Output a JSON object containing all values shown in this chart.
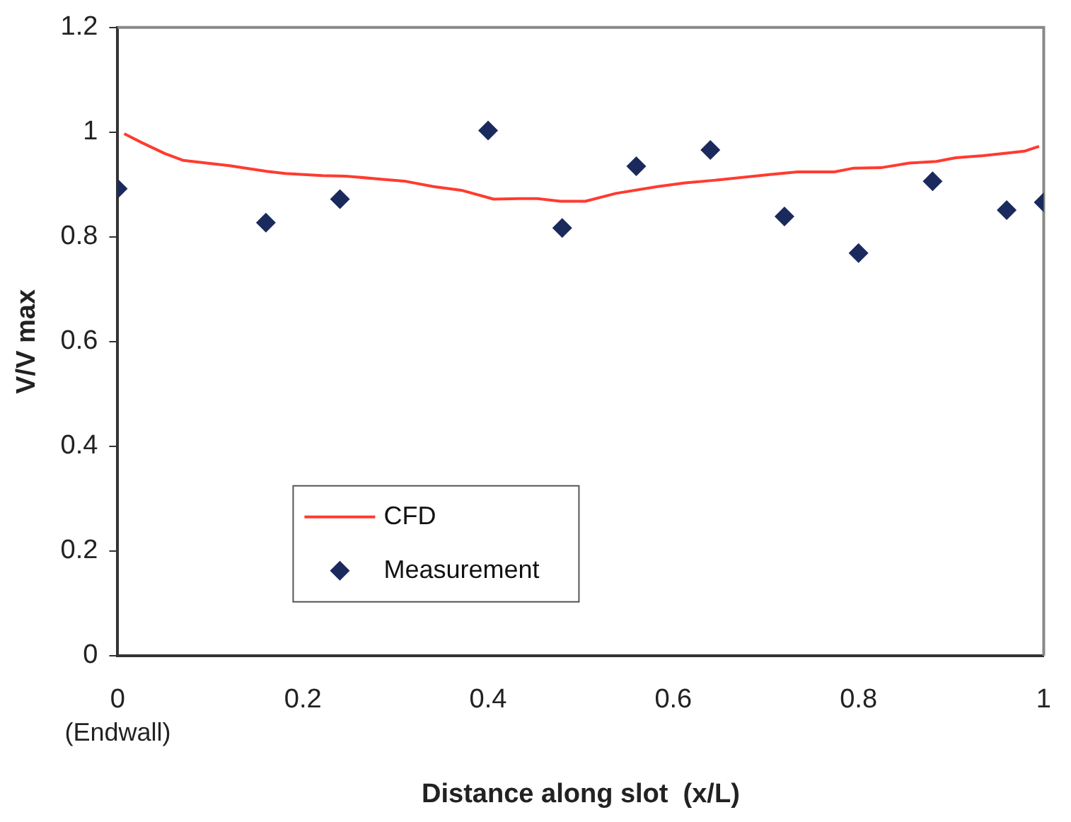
{
  "chart_data": {
    "type": "line",
    "xlabel": "Distance along slot  (x/L)",
    "ylabel": "V/V max",
    "xlim": [
      0,
      1
    ],
    "xticks": [
      0,
      0.2,
      0.4,
      0.6,
      0.8,
      1
    ],
    "ylim": [
      0,
      1.2
    ],
    "yticks": [
      0,
      0.2,
      0.4,
      0.6,
      0.8,
      1,
      1.2
    ],
    "grid": false,
    "legend": "bottom left",
    "annotations": [
      "(Endwall)"
    ],
    "series": [
      {
        "name": "CFD",
        "marker": "none",
        "color": "#ff3b2f",
        "x": [
          0.007,
          0.026,
          0.051,
          0.071,
          0.101,
          0.121,
          0.161,
          0.181,
          0.221,
          0.246,
          0.286,
          0.311,
          0.341,
          0.371,
          0.406,
          0.433,
          0.453,
          0.478,
          0.505,
          0.538,
          0.583,
          0.613,
          0.644,
          0.704,
          0.734,
          0.774,
          0.794,
          0.824,
          0.855,
          0.884,
          0.905,
          0.935,
          0.965,
          0.98,
          0.995
        ],
        "values": [
          0.997,
          0.98,
          0.959,
          0.946,
          0.94,
          0.936,
          0.925,
          0.921,
          0.917,
          0.916,
          0.91,
          0.906,
          0.896,
          0.889,
          0.872,
          0.873,
          0.873,
          0.868,
          0.868,
          0.883,
          0.896,
          0.903,
          0.908,
          0.919,
          0.924,
          0.924,
          0.931,
          0.932,
          0.941,
          0.944,
          0.951,
          0.955,
          0.961,
          0.964,
          0.973
        ]
      },
      {
        "name": "Measurement",
        "type": "scatter",
        "marker": "diamond",
        "color": "#1b2a5c",
        "x": [
          0,
          0.16,
          0.24,
          0.4,
          0.48,
          0.56,
          0.64,
          0.72,
          0.8,
          0.88,
          0.96,
          1
        ],
        "values": [
          0.892,
          0.827,
          0.872,
          1.003,
          0.817,
          0.935,
          0.966,
          0.839,
          0.769,
          0.906,
          0.851,
          0.866
        ]
      }
    ]
  }
}
